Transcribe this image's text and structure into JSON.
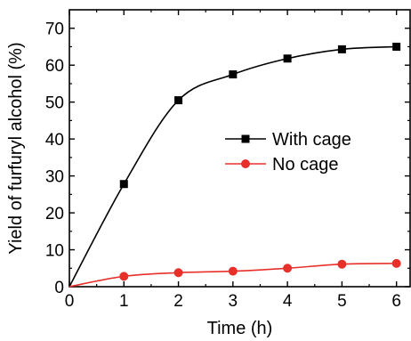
{
  "chart_data": {
    "type": "line",
    "xlabel": "Time (h)",
    "ylabel": "Yield of furfuryl alcohol (%)",
    "xlim": [
      0,
      6.25
    ],
    "ylim": [
      0,
      75
    ],
    "x_ticks": [
      0,
      1,
      2,
      3,
      4,
      5,
      6
    ],
    "y_ticks": [
      0,
      10,
      20,
      30,
      40,
      50,
      60,
      70
    ],
    "grid": false,
    "legend_position": "center-right",
    "series": [
      {
        "name": "With cage",
        "marker": "square",
        "color": "#000000",
        "x": [
          0,
          1,
          2,
          3,
          4,
          5,
          6
        ],
        "y": [
          0,
          27.8,
          50.5,
          57.5,
          61.8,
          64.3,
          65.0
        ]
      },
      {
        "name": "No cage",
        "marker": "circle",
        "color": "#e8302a",
        "x": [
          0,
          1,
          2,
          3,
          4,
          5,
          6
        ],
        "y": [
          0,
          2.8,
          3.8,
          4.2,
          5.0,
          6.1,
          6.3
        ]
      }
    ]
  }
}
